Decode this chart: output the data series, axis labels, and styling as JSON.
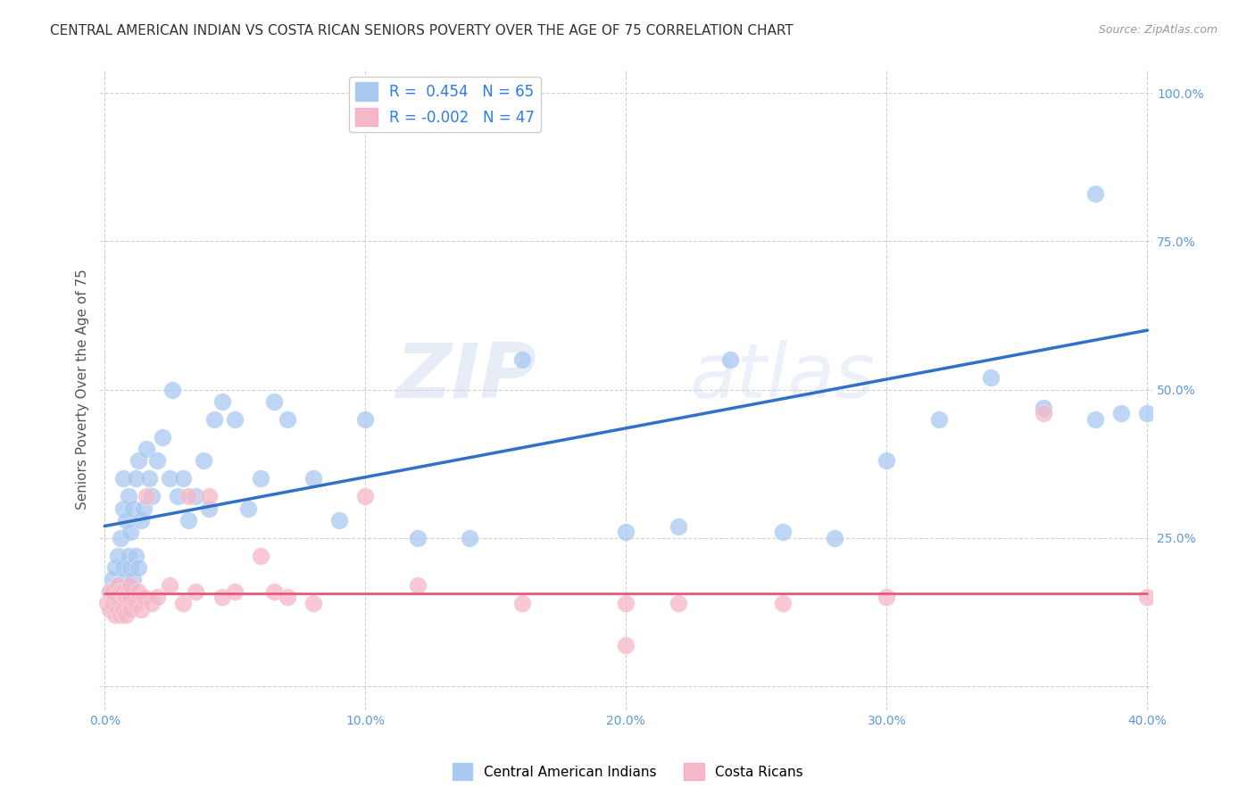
{
  "title": "CENTRAL AMERICAN INDIAN VS COSTA RICAN SENIORS POVERTY OVER THE AGE OF 75 CORRELATION CHART",
  "source": "Source: ZipAtlas.com",
  "ylabel": "Seniors Poverty Over the Age of 75",
  "xlim": [
    -0.002,
    0.402
  ],
  "ylim": [
    -0.04,
    1.04
  ],
  "xticks": [
    0.0,
    0.1,
    0.2,
    0.3,
    0.4
  ],
  "xticklabels": [
    "0.0%",
    "10.0%",
    "20.0%",
    "30.0%",
    "40.0%"
  ],
  "yticks": [
    0.0,
    0.25,
    0.5,
    0.75,
    1.0
  ],
  "yticklabels": [
    "",
    "25.0%",
    "50.0%",
    "75.0%",
    "100.0%"
  ],
  "blue_R": "0.454",
  "blue_N": "65",
  "pink_R": "-0.002",
  "pink_N": "47",
  "blue_color": "#A8C8F0",
  "pink_color": "#F5B8C8",
  "blue_line_color": "#3070C8",
  "pink_line_color": "#E85878",
  "background_color": "#FFFFFF",
  "grid_color": "#CCCCCC",
  "legend_label_blue": "Central American Indians",
  "legend_label_pink": "Costa Ricans",
  "watermark_zip": "ZIP",
  "watermark_atlas": "atlas",
  "blue_dots_x": [
    0.002,
    0.003,
    0.004,
    0.004,
    0.005,
    0.005,
    0.006,
    0.006,
    0.007,
    0.007,
    0.007,
    0.008,
    0.008,
    0.009,
    0.009,
    0.01,
    0.01,
    0.01,
    0.011,
    0.011,
    0.012,
    0.012,
    0.013,
    0.013,
    0.014,
    0.015,
    0.016,
    0.017,
    0.018,
    0.02,
    0.022,
    0.025,
    0.026,
    0.028,
    0.03,
    0.032,
    0.035,
    0.038,
    0.04,
    0.042,
    0.045,
    0.05,
    0.055,
    0.06,
    0.065,
    0.07,
    0.08,
    0.09,
    0.1,
    0.12,
    0.14,
    0.16,
    0.2,
    0.22,
    0.24,
    0.26,
    0.28,
    0.3,
    0.32,
    0.34,
    0.36,
    0.38,
    0.38,
    0.39,
    0.4
  ],
  "blue_dots_y": [
    0.16,
    0.18,
    0.15,
    0.2,
    0.17,
    0.22,
    0.16,
    0.25,
    0.2,
    0.3,
    0.35,
    0.18,
    0.28,
    0.22,
    0.32,
    0.15,
    0.2,
    0.26,
    0.18,
    0.3,
    0.22,
    0.35,
    0.2,
    0.38,
    0.28,
    0.3,
    0.4,
    0.35,
    0.32,
    0.38,
    0.42,
    0.35,
    0.5,
    0.32,
    0.35,
    0.28,
    0.32,
    0.38,
    0.3,
    0.45,
    0.48,
    0.45,
    0.3,
    0.35,
    0.48,
    0.45,
    0.35,
    0.28,
    0.45,
    0.25,
    0.25,
    0.55,
    0.26,
    0.27,
    0.55,
    0.26,
    0.25,
    0.38,
    0.45,
    0.52,
    0.47,
    0.45,
    0.83,
    0.46,
    0.46
  ],
  "pink_dots_x": [
    0.001,
    0.002,
    0.002,
    0.003,
    0.003,
    0.004,
    0.004,
    0.005,
    0.005,
    0.005,
    0.006,
    0.006,
    0.007,
    0.007,
    0.008,
    0.008,
    0.009,
    0.01,
    0.01,
    0.01,
    0.012,
    0.013,
    0.014,
    0.015,
    0.016,
    0.018,
    0.02,
    0.025,
    0.03,
    0.032,
    0.035,
    0.04,
    0.045,
    0.05,
    0.06,
    0.065,
    0.07,
    0.08,
    0.1,
    0.12,
    0.16,
    0.2,
    0.22,
    0.26,
    0.3,
    0.36,
    0.4
  ],
  "pink_dots_y": [
    0.14,
    0.13,
    0.16,
    0.14,
    0.16,
    0.12,
    0.15,
    0.13,
    0.15,
    0.17,
    0.12,
    0.16,
    0.13,
    0.16,
    0.12,
    0.15,
    0.16,
    0.13,
    0.15,
    0.17,
    0.14,
    0.16,
    0.13,
    0.15,
    0.32,
    0.14,
    0.15,
    0.17,
    0.14,
    0.32,
    0.16,
    0.32,
    0.15,
    0.16,
    0.22,
    0.16,
    0.15,
    0.14,
    0.32,
    0.17,
    0.14,
    0.14,
    0.14,
    0.14,
    0.15,
    0.46,
    0.15
  ],
  "pink_outlier_x": [
    0.2
  ],
  "pink_outlier_y": [
    0.07
  ],
  "title_fontsize": 11,
  "axis_label_fontsize": 11,
  "tick_fontsize": 10,
  "legend_fontsize": 11
}
